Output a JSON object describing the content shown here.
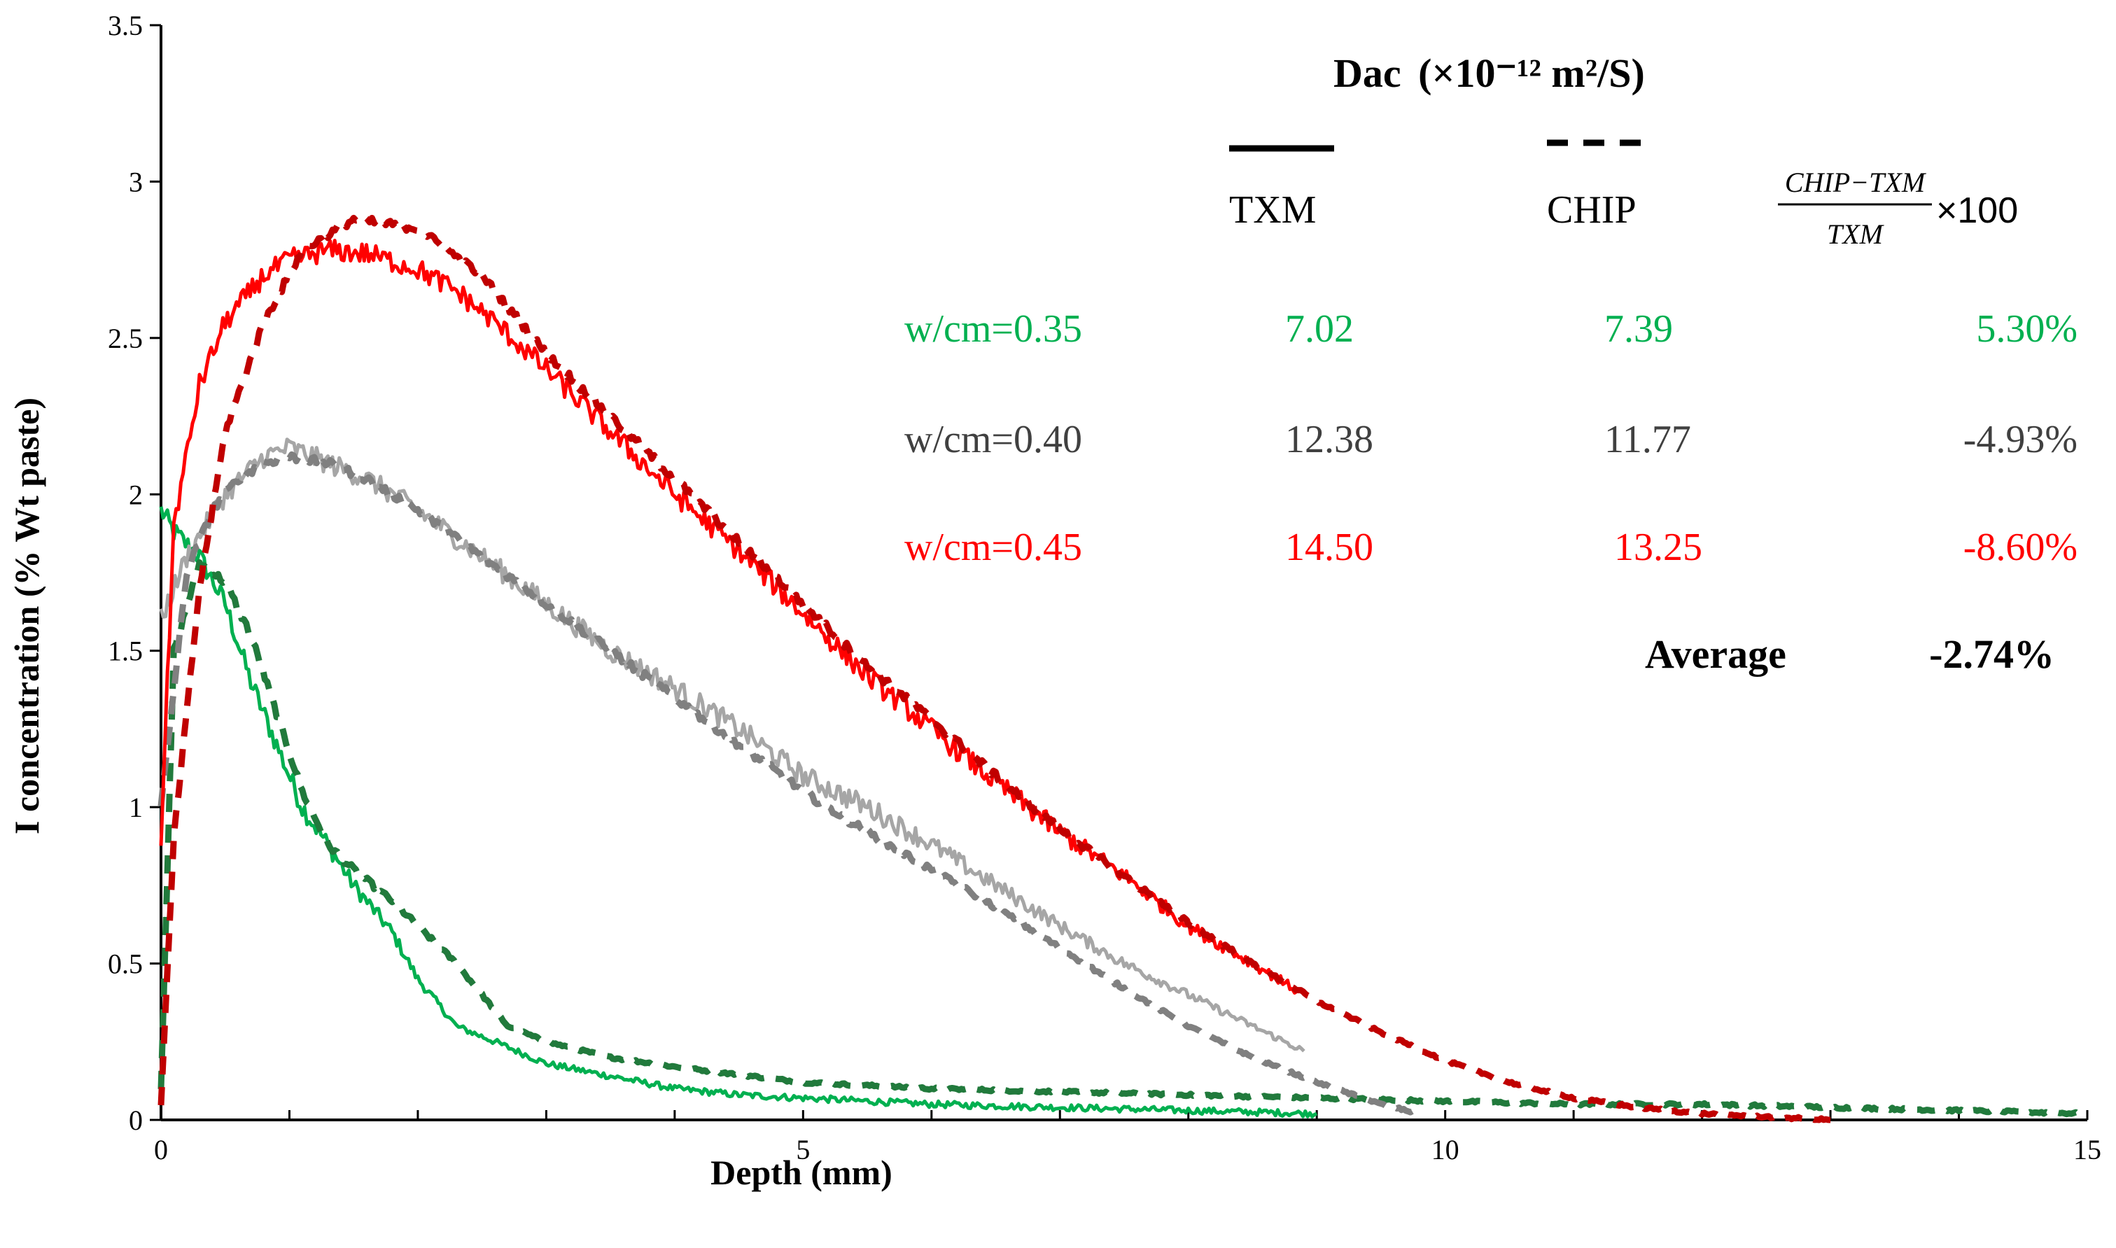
{
  "chart_data": {
    "type": "line",
    "title": "",
    "xlabel": "Depth (mm)",
    "ylabel": "I concentration (% Wt paste)",
    "xlim": [
      0,
      15
    ],
    "ylim": [
      0,
      3.5
    ],
    "x_ticks": [
      "0",
      "5",
      "10",
      "15"
    ],
    "y_ticks": [
      "0",
      "0.5",
      "1",
      "1.5",
      "2",
      "2.5",
      "3",
      "3.5"
    ],
    "grid": false,
    "legend": "none",
    "series": [
      {
        "name": "w/cm=0.35 TXM",
        "color": "#00b050",
        "style": "solid",
        "x": [
          0,
          0.1,
          0.3,
          0.5,
          0.7,
          0.9,
          1.1,
          1.3,
          1.5,
          1.8,
          2.0,
          2.3,
          2.6,
          3.0,
          3.5,
          4.0,
          4.5,
          5.0,
          6.0,
          7.0,
          8.0,
          9.0
        ],
        "y": [
          1.95,
          1.88,
          1.8,
          1.65,
          1.4,
          1.2,
          1.0,
          0.88,
          0.75,
          0.6,
          0.45,
          0.3,
          0.25,
          0.18,
          0.14,
          0.1,
          0.08,
          0.07,
          0.05,
          0.04,
          0.03,
          0.02
        ]
      },
      {
        "name": "w/cm=0.35 CHIP",
        "color": "#217a3c",
        "style": "dashed",
        "x": [
          0,
          0.1,
          0.3,
          0.5,
          0.7,
          0.9,
          1.1,
          1.3,
          1.5,
          1.8,
          2.0,
          2.3,
          2.5,
          2.7,
          3.0,
          3.5,
          4.0,
          5.0,
          6.0,
          7.0,
          8.0,
          9.0,
          10.0,
          11.0,
          12.0,
          13.0,
          14.0,
          15.0
        ],
        "y": [
          0.1,
          1.5,
          1.78,
          1.72,
          1.55,
          1.3,
          1.05,
          0.88,
          0.8,
          0.7,
          0.62,
          0.5,
          0.4,
          0.3,
          0.25,
          0.2,
          0.17,
          0.12,
          0.1,
          0.09,
          0.08,
          0.07,
          0.06,
          0.05,
          0.05,
          0.04,
          0.03,
          0.02
        ]
      },
      {
        "name": "w/cm=0.40 TXM",
        "color": "#a6a6a6",
        "style": "solid",
        "x": [
          0,
          0.2,
          0.5,
          0.8,
          1.0,
          1.3,
          1.6,
          2.0,
          2.5,
          3.0,
          3.5,
          4.0,
          4.5,
          5.0,
          5.5,
          6.0,
          6.5,
          7.0,
          7.5,
          8.0,
          8.5,
          8.9
        ],
        "y": [
          1.6,
          1.8,
          2.0,
          2.12,
          2.15,
          2.1,
          2.05,
          1.95,
          1.8,
          1.65,
          1.5,
          1.38,
          1.25,
          1.1,
          1.0,
          0.88,
          0.75,
          0.62,
          0.5,
          0.4,
          0.3,
          0.22
        ]
      },
      {
        "name": "w/cm=0.40 CHIP",
        "color": "#808080",
        "style": "dashed",
        "x": [
          0,
          0.2,
          0.4,
          0.6,
          0.8,
          1.0,
          1.3,
          1.6,
          2.0,
          2.5,
          3.0,
          3.5,
          4.0,
          4.5,
          5.0,
          5.5,
          6.0,
          6.5,
          7.0,
          7.5,
          8.0,
          8.5,
          9.0,
          9.5,
          9.8
        ],
        "y": [
          1.0,
          1.75,
          1.95,
          2.05,
          2.1,
          2.12,
          2.1,
          2.05,
          1.95,
          1.8,
          1.65,
          1.5,
          1.35,
          1.2,
          1.05,
          0.92,
          0.8,
          0.68,
          0.55,
          0.42,
          0.3,
          0.2,
          0.12,
          0.05,
          0.02
        ]
      },
      {
        "name": "w/cm=0.45 TXM",
        "color": "#ff0000",
        "style": "solid",
        "x": [
          0,
          0.1,
          0.3,
          0.5,
          0.8,
          1.0,
          1.3,
          1.6,
          2.0,
          2.3,
          2.6,
          3.0,
          3.5,
          4.0,
          4.5,
          5.0,
          5.5,
          6.0,
          6.5,
          7.0,
          7.5,
          8.0,
          8.5,
          8.9
        ],
        "y": [
          0.9,
          1.9,
          2.35,
          2.55,
          2.7,
          2.75,
          2.78,
          2.77,
          2.72,
          2.65,
          2.55,
          2.4,
          2.2,
          2.0,
          1.82,
          1.62,
          1.42,
          1.25,
          1.08,
          0.92,
          0.78,
          0.62,
          0.5,
          0.4
        ]
      },
      {
        "name": "w/cm=0.45 CHIP",
        "color": "#c00000",
        "style": "dashed",
        "x": [
          0,
          0.1,
          0.3,
          0.5,
          0.8,
          1.1,
          1.5,
          2.0,
          2.5,
          3.0,
          3.5,
          4.0,
          4.5,
          5.0,
          5.5,
          6.0,
          6.5,
          7.0,
          7.5,
          8.0,
          8.5,
          9.0,
          9.5,
          10.0,
          10.5,
          11.0,
          11.5,
          12.0,
          12.5,
          13.0
        ],
        "y": [
          0.05,
          0.9,
          1.7,
          2.2,
          2.55,
          2.78,
          2.88,
          2.85,
          2.7,
          2.45,
          2.25,
          2.05,
          1.85,
          1.65,
          1.45,
          1.28,
          1.1,
          0.93,
          0.78,
          0.63,
          0.5,
          0.38,
          0.28,
          0.19,
          0.12,
          0.07,
          0.04,
          0.02,
          0.01,
          0.0
        ]
      }
    ]
  },
  "table": {
    "heading": "Dac",
    "heading_unit": "(×10⁻¹² m²/S)",
    "col_txm": "TXM",
    "col_chip": "CHIP",
    "col_formula_num": "CHIP−TXM",
    "col_formula_den": "TXM",
    "col_formula_suffix": "×100",
    "rows": [
      {
        "label": "w/cm=0.35",
        "txm": "7.02",
        "chip": "7.39",
        "diff": "5.30%",
        "color": "#00b050"
      },
      {
        "label": "w/cm=0.40",
        "txm": "12.38",
        "chip": "11.77",
        "diff": "-4.93%",
        "color": "#404040"
      },
      {
        "label": "w/cm=0.45",
        "txm": "14.50",
        "chip": "13.25",
        "diff": "-8.60%",
        "color": "#ff0000"
      }
    ],
    "average_label": "Average",
    "average_value": "-2.74%"
  }
}
